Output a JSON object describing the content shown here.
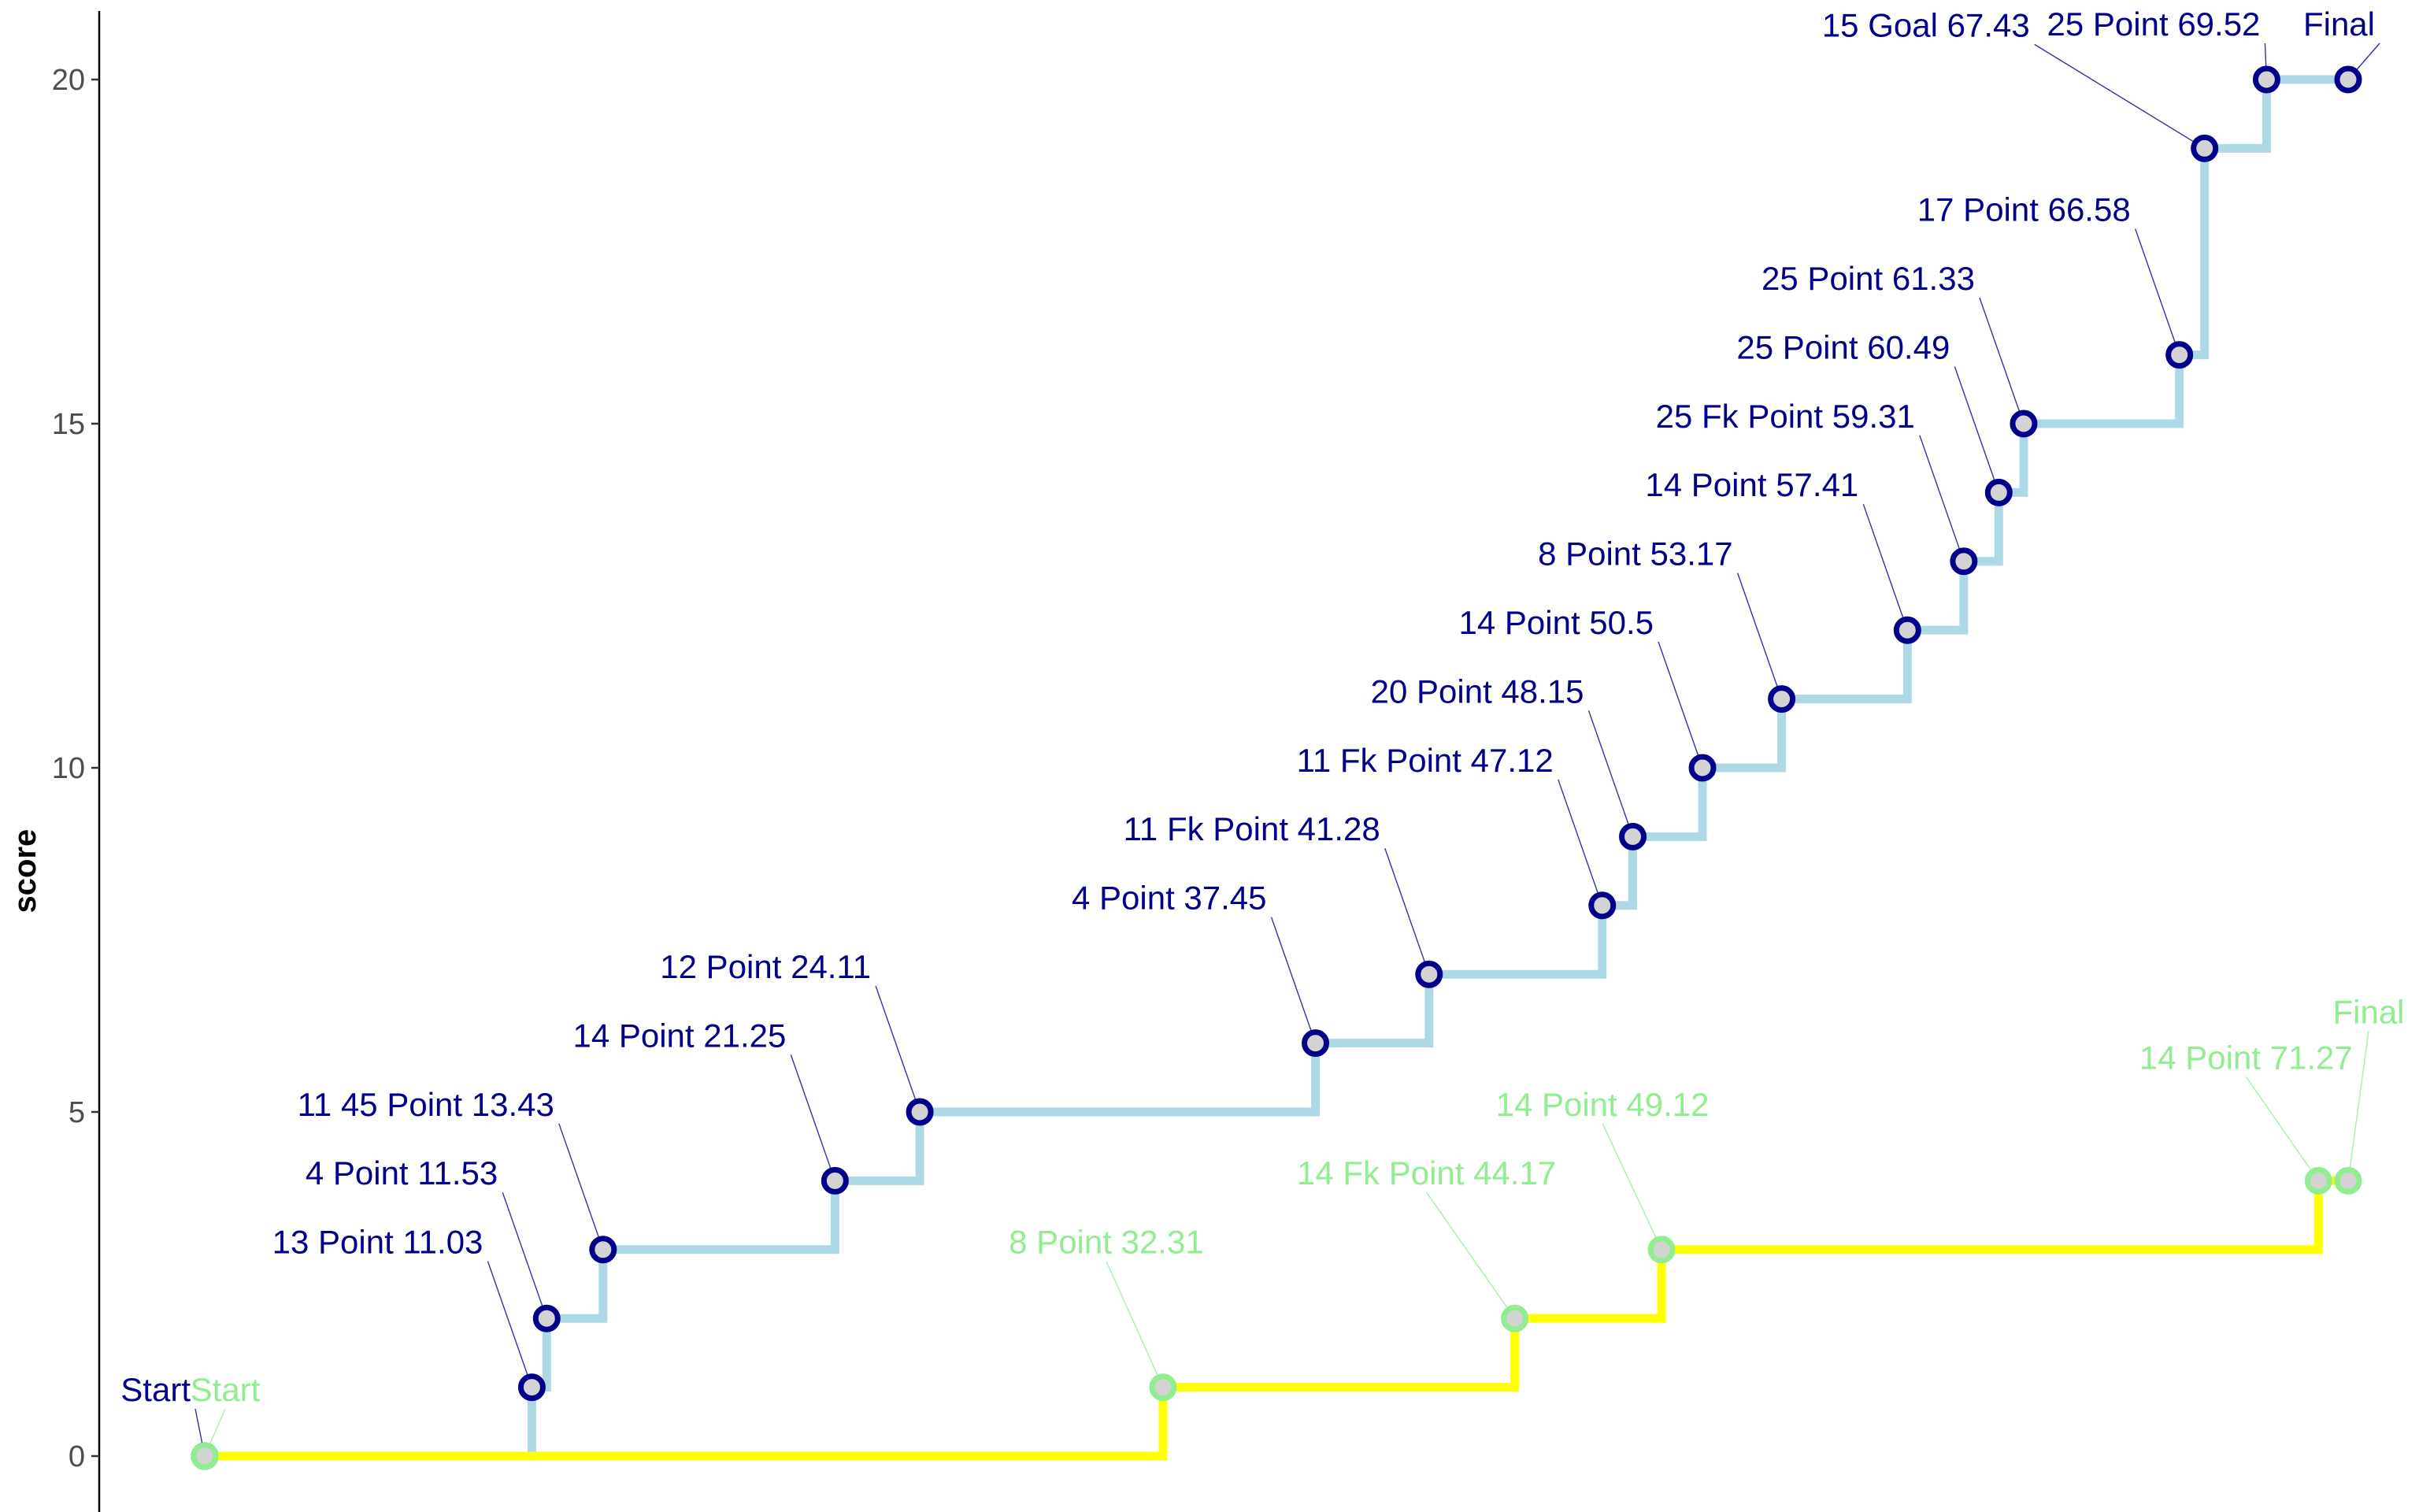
{
  "chart_data": {
    "type": "line",
    "title": "",
    "xlabel": "",
    "ylabel": "score",
    "ylim": [
      -1,
      21
    ],
    "xlim": [
      -3,
      77
    ],
    "y_ticks": [
      0,
      5,
      10,
      15,
      20
    ],
    "grid": false,
    "legend": "none",
    "step": true,
    "series": [
      {
        "color": "#add8e6",
        "marker_color": "#00008b",
        "label_color": "#00008b",
        "points": [
          {
            "x": 0,
            "y": 0,
            "label": "Start"
          },
          {
            "x": 11.03,
            "y": 1,
            "label": "13 Point 11.03"
          },
          {
            "x": 11.53,
            "y": 2,
            "label": "4 Point 11.53"
          },
          {
            "x": 13.43,
            "y": 3,
            "label": "11 45 Point 13.43"
          },
          {
            "x": 21.25,
            "y": 4,
            "label": "14 Point 21.25"
          },
          {
            "x": 24.11,
            "y": 5,
            "label": "12 Point 24.11"
          },
          {
            "x": 37.45,
            "y": 6,
            "label": "4 Point 37.45"
          },
          {
            "x": 41.28,
            "y": 7,
            "label": "11 Fk Point 41.28"
          },
          {
            "x": 47.12,
            "y": 8,
            "label": "11 Fk Point 47.12"
          },
          {
            "x": 48.15,
            "y": 9,
            "label": "20 Point 48.15"
          },
          {
            "x": 50.5,
            "y": 10,
            "label": "14 Point 50.5"
          },
          {
            "x": 53.17,
            "y": 11,
            "label": "8 Point 53.17"
          },
          {
            "x": 57.41,
            "y": 12,
            "label": "14 Point 57.41"
          },
          {
            "x": 59.31,
            "y": 13,
            "label": "25 Fk Point 59.31"
          },
          {
            "x": 60.49,
            "y": 14,
            "label": "25 Point 60.49"
          },
          {
            "x": 61.33,
            "y": 15,
            "label": "25 Point 61.33"
          },
          {
            "x": 66.58,
            "y": 16,
            "label": "17 Point 66.58"
          },
          {
            "x": 67.43,
            "y": 19,
            "label": "15 Goal 67.43"
          },
          {
            "x": 69.52,
            "y": 20,
            "label": "25 Point 69.52"
          },
          {
            "x": 72.27,
            "y": 20,
            "label": "Final"
          }
        ]
      },
      {
        "color": "#ffff00",
        "marker_color": "#90ee90",
        "label_color": "#90ee90",
        "points": [
          {
            "x": 0,
            "y": 0,
            "label": "Start"
          },
          {
            "x": 32.31,
            "y": 1,
            "label": "8 Point 32.31"
          },
          {
            "x": 44.17,
            "y": 2,
            "label": "14 Fk Point 44.17"
          },
          {
            "x": 49.12,
            "y": 3,
            "label": "14 Point 49.12"
          },
          {
            "x": 71.27,
            "y": 4,
            "label": "14 Point 71.27"
          },
          {
            "x": 72.27,
            "y": 4,
            "label": "Final"
          }
        ]
      }
    ]
  }
}
